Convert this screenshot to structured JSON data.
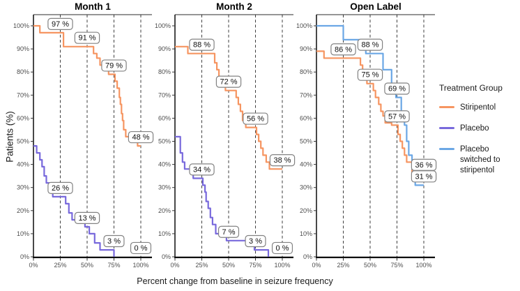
{
  "figure": {
    "xlabel": "Percent change from baseline in seizure frequency",
    "ylabel": "Patients (%)"
  },
  "legend": {
    "title": "Treatment Group",
    "entries": [
      {
        "label": "Stiripentol",
        "color": "#f69561"
      },
      {
        "label": "Placebo",
        "color": "#7869dc"
      },
      {
        "label": "Placebo switched to stiripentol",
        "color": "#6ba7e5"
      }
    ]
  },
  "chart_data": [
    {
      "type": "line",
      "title": "Month 1",
      "x_tick_labels": [
        "0%",
        "25%",
        "50%",
        "75%",
        "100%"
      ],
      "y_tick_labels": [
        "0%",
        "10%",
        "20%",
        "30%",
        "40%",
        "50%",
        "60%",
        "70%",
        "80%",
        "90%",
        "100%"
      ],
      "xlim": [
        0,
        100
      ],
      "ylim": [
        0,
        100
      ],
      "grid": "dashed vertical at 25,50,75,100",
      "series": [
        {
          "name": "Stiripentol",
          "color": "#f69561",
          "points": [
            [
              0,
              100
            ],
            [
              6,
              97
            ],
            [
              28,
              91
            ],
            [
              56,
              88
            ],
            [
              59,
              86
            ],
            [
              62,
              83
            ],
            [
              65,
              81
            ],
            [
              70,
              79
            ],
            [
              76,
              76
            ],
            [
              78,
              73
            ],
            [
              80,
              69
            ],
            [
              81,
              66
            ],
            [
              82,
              62
            ],
            [
              83,
              59
            ],
            [
              84,
              55
            ],
            [
              86,
              52
            ],
            [
              97,
              48
            ],
            [
              100,
              48
            ]
          ]
        },
        {
          "name": "Placebo",
          "color": "#7869dc",
          "points": [
            [
              0,
              48
            ],
            [
              3,
              45
            ],
            [
              6,
              42
            ],
            [
              8,
              39
            ],
            [
              10,
              35
            ],
            [
              12,
              32
            ],
            [
              15,
              29
            ],
            [
              18,
              26
            ],
            [
              30,
              23
            ],
            [
              33,
              19
            ],
            [
              36,
              16
            ],
            [
              48,
              13
            ],
            [
              52,
              10
            ],
            [
              57,
              6
            ],
            [
              62,
              3
            ],
            [
              75,
              0
            ]
          ]
        }
      ],
      "annotations": [
        {
          "x": 25,
          "value": 97,
          "text": "97 %",
          "series": "Stiripentol"
        },
        {
          "x": 50,
          "value": 91,
          "text": "91 %",
          "series": "Stiripentol"
        },
        {
          "x": 75,
          "value": 79,
          "text": "79 %",
          "series": "Stiripentol"
        },
        {
          "x": 100,
          "value": 48,
          "text": "48 %",
          "series": "Stiripentol"
        },
        {
          "x": 25,
          "value": 26,
          "text": "26 %",
          "series": "Placebo"
        },
        {
          "x": 50,
          "value": 13,
          "text": "13 %",
          "series": "Placebo"
        },
        {
          "x": 75,
          "value": 3,
          "text": "3 %",
          "series": "Placebo"
        },
        {
          "x": 100,
          "value": 0,
          "text": "0 %",
          "series": "Placebo"
        }
      ]
    },
    {
      "type": "line",
      "title": "Month 2",
      "x_tick_labels": [
        "0%",
        "25%",
        "50%",
        "75%",
        "100%"
      ],
      "y_tick_labels": [
        "0%",
        "10%",
        "20%",
        "30%",
        "40%",
        "50%",
        "60%",
        "70%",
        "80%",
        "90%",
        "100%"
      ],
      "xlim": [
        0,
        100
      ],
      "ylim": [
        0,
        100
      ],
      "grid": "dashed vertical at 25,50,75,100",
      "series": [
        {
          "name": "Stiripentol",
          "color": "#f69561",
          "points": [
            [
              0,
              91
            ],
            [
              12,
              88
            ],
            [
              37,
              84
            ],
            [
              39,
              81
            ],
            [
              41,
              78
            ],
            [
              44,
              75
            ],
            [
              47,
              72
            ],
            [
              57,
              69
            ],
            [
              59,
              66
            ],
            [
              61,
              63
            ],
            [
              63,
              59
            ],
            [
              66,
              56
            ],
            [
              76,
              53
            ],
            [
              78,
              50
            ],
            [
              80,
              47
            ],
            [
              82,
              44
            ],
            [
              85,
              41
            ],
            [
              88,
              38
            ],
            [
              100,
              38
            ]
          ]
        },
        {
          "name": "Placebo",
          "color": "#7869dc",
          "points": [
            [
              0,
              52
            ],
            [
              5,
              45
            ],
            [
              7,
              41
            ],
            [
              9,
              38
            ],
            [
              17,
              34
            ],
            [
              26,
              31
            ],
            [
              28,
              28
            ],
            [
              29,
              24
            ],
            [
              31,
              21
            ],
            [
              33,
              17
            ],
            [
              35,
              14
            ],
            [
              38,
              10
            ],
            [
              48,
              7
            ],
            [
              72,
              5
            ],
            [
              74,
              3
            ],
            [
              87,
              0
            ]
          ]
        }
      ],
      "annotations": [
        {
          "x": 25,
          "value": 88,
          "text": "88 %",
          "series": "Stiripentol"
        },
        {
          "x": 50,
          "value": 72,
          "text": "72 %",
          "series": "Stiripentol"
        },
        {
          "x": 75,
          "value": 56,
          "text": "56 %",
          "series": "Stiripentol"
        },
        {
          "x": 100,
          "value": 38,
          "text": "38 %",
          "series": "Stiripentol"
        },
        {
          "x": 25,
          "value": 34,
          "text": "34 %",
          "series": "Placebo"
        },
        {
          "x": 50,
          "value": 7,
          "text": "7 %",
          "series": "Placebo"
        },
        {
          "x": 75,
          "value": 3,
          "text": "3 %",
          "series": "Placebo"
        },
        {
          "x": 100,
          "value": 0,
          "text": "0 %",
          "series": "Placebo"
        }
      ]
    },
    {
      "type": "line",
      "title": "Open Label",
      "x_tick_labels": [
        "0%",
        "25%",
        "50%",
        "75%",
        "100%"
      ],
      "y_tick_labels": [
        "0%",
        "10%",
        "20%",
        "30%",
        "40%",
        "50%",
        "60%",
        "70%",
        "80%",
        "90%",
        "100%"
      ],
      "xlim": [
        0,
        100
      ],
      "ylim": [
        0,
        100
      ],
      "grid": "dashed vertical at 25,50,75,100",
      "series": [
        {
          "name": "Stiripentol",
          "color": "#f69561",
          "points": [
            [
              0,
              89
            ],
            [
              7,
              86
            ],
            [
              41,
              83
            ],
            [
              43,
              80
            ],
            [
              45,
              77
            ],
            [
              47,
              75
            ],
            [
              53,
              72
            ],
            [
              55,
              69
            ],
            [
              58,
              66
            ],
            [
              60,
              63
            ],
            [
              62,
              61
            ],
            [
              64,
              58
            ],
            [
              70,
              57
            ],
            [
              76,
              53
            ],
            [
              78,
              50
            ],
            [
              80,
              47
            ],
            [
              82,
              44
            ],
            [
              84,
              41
            ],
            [
              89,
              36
            ],
            [
              100,
              36
            ]
          ]
        },
        {
          "name": "Placebo switched to stiripentol",
          "color": "#6ba7e5",
          "points": [
            [
              0,
              100
            ],
            [
              25,
              94
            ],
            [
              46,
              88
            ],
            [
              62,
              81
            ],
            [
              70,
              75
            ],
            [
              74,
              69
            ],
            [
              79,
              63
            ],
            [
              82,
              57
            ],
            [
              84,
              50
            ],
            [
              86,
              44
            ],
            [
              89,
              38
            ],
            [
              92,
              31
            ],
            [
              100,
              31
            ]
          ]
        }
      ],
      "annotations": [
        {
          "x": 25,
          "value": 86,
          "text": "86 %",
          "series": "Stiripentol"
        },
        {
          "x": 50,
          "value": 88,
          "text": "88 %",
          "series": "Placebo switched to stiripentol"
        },
        {
          "x": 50,
          "value": 75,
          "text": "75 %",
          "series": "Stiripentol"
        },
        {
          "x": 75,
          "value": 69,
          "text": "69 %",
          "series": "Placebo switched to stiripentol"
        },
        {
          "x": 75,
          "value": 57,
          "text": "57 %",
          "series": "Stiripentol"
        },
        {
          "x": 100,
          "value": 36,
          "text": "36 %",
          "series": "Stiripentol"
        },
        {
          "x": 100,
          "value": 31,
          "text": "31 %",
          "series": "Placebo switched to stiripentol"
        }
      ]
    }
  ]
}
